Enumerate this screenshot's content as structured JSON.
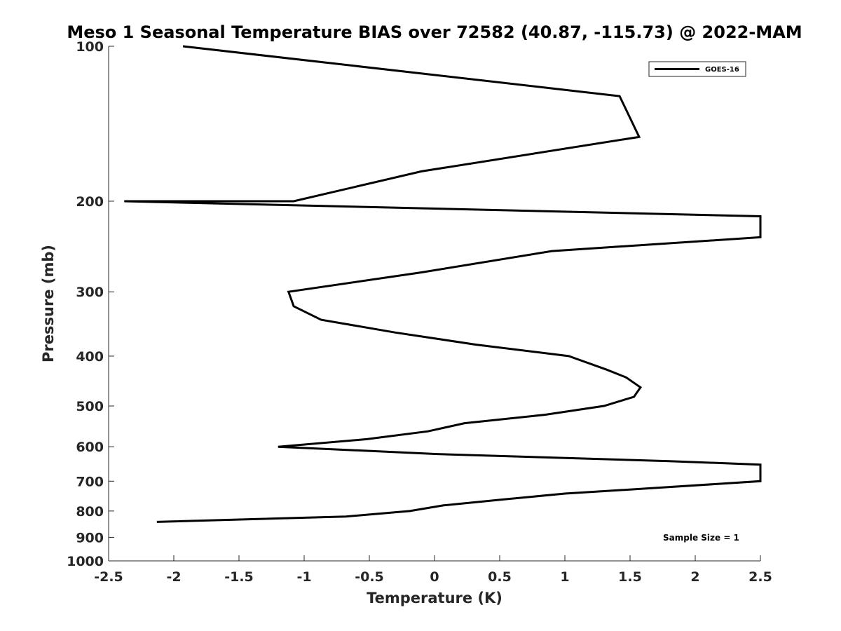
{
  "chart_data": {
    "type": "line",
    "title": "Meso 1 Seasonal Temperature BIAS over 72582 (40.87, -115.73) @ 2022-MAM",
    "xlabel": "Temperature (K)",
    "ylabel": "Pressure (mb)",
    "xlim": [
      -2.5,
      2.5
    ],
    "ylim": [
      100,
      1000
    ],
    "y_scale": "log",
    "y_reversed": true,
    "x_ticks": [
      -2.5,
      -2,
      -1.5,
      -1,
      -0.5,
      0,
      0.5,
      1,
      1.5,
      2,
      2.5
    ],
    "x_tick_labels": [
      "-2.5",
      "-2",
      "-1.5",
      "-1",
      "-0.5",
      "0",
      "0.5",
      "1",
      "1.5",
      "2",
      "2.5"
    ],
    "y_ticks": [
      100,
      200,
      300,
      400,
      500,
      600,
      700,
      800,
      900,
      1000
    ],
    "y_tick_labels": [
      "100",
      "200",
      "300",
      "400",
      "500",
      "600",
      "700",
      "800",
      "900",
      "1000"
    ],
    "grid": false,
    "legend_position": "top-right",
    "series": [
      {
        "name": "GOES-16",
        "color": "#000000",
        "points": [
          {
            "x": -1.93,
            "p": 100
          },
          {
            "x": 1.42,
            "p": 125
          },
          {
            "x": 1.57,
            "p": 150
          },
          {
            "x": -0.1,
            "p": 175
          },
          {
            "x": -1.08,
            "p": 200
          },
          {
            "x": -2.38,
            "p": 200
          },
          {
            "x": 2.5,
            "p": 214
          },
          {
            "x": 2.5,
            "p": 235
          },
          {
            "x": 0.9,
            "p": 250
          },
          {
            "x": -0.1,
            "p": 275
          },
          {
            "x": -1.12,
            "p": 300
          },
          {
            "x": -1.08,
            "p": 320
          },
          {
            "x": -0.87,
            "p": 340
          },
          {
            "x": -0.3,
            "p": 360
          },
          {
            "x": 0.32,
            "p": 380
          },
          {
            "x": 1.03,
            "p": 400
          },
          {
            "x": 1.32,
            "p": 425
          },
          {
            "x": 1.47,
            "p": 440
          },
          {
            "x": 1.58,
            "p": 460
          },
          {
            "x": 1.53,
            "p": 480
          },
          {
            "x": 1.3,
            "p": 500
          },
          {
            "x": 0.85,
            "p": 520
          },
          {
            "x": 0.23,
            "p": 540
          },
          {
            "x": -0.05,
            "p": 560
          },
          {
            "x": -0.52,
            "p": 580
          },
          {
            "x": -1.2,
            "p": 600
          },
          {
            "x": 0.02,
            "p": 620
          },
          {
            "x": 1.8,
            "p": 640
          },
          {
            "x": 2.5,
            "p": 650
          },
          {
            "x": 2.5,
            "p": 700
          },
          {
            "x": 1.75,
            "p": 720
          },
          {
            "x": 1.0,
            "p": 740
          },
          {
            "x": 0.52,
            "p": 760
          },
          {
            "x": 0.07,
            "p": 780
          },
          {
            "x": -0.19,
            "p": 800
          },
          {
            "x": -0.68,
            "p": 820
          },
          {
            "x": -2.13,
            "p": 840
          }
        ]
      }
    ],
    "annotation": "Sample Size = 1"
  }
}
